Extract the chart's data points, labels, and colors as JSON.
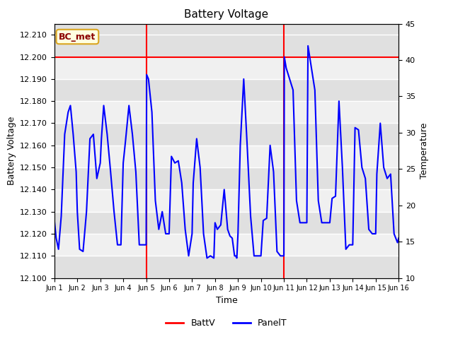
{
  "title": "Battery Voltage",
  "ylabel_left": "Battery Voltage",
  "ylabel_right": "Temperature",
  "xlabel": "Time",
  "ylim_left": [
    12.1,
    12.215
  ],
  "ylim_right": [
    10,
    45
  ],
  "yticks_left": [
    12.1,
    12.11,
    12.12,
    12.13,
    12.14,
    12.15,
    12.16,
    12.17,
    12.18,
    12.19,
    12.2,
    12.21
  ],
  "yticks_right": [
    10,
    15,
    20,
    25,
    30,
    35,
    40,
    45
  ],
  "xtick_labels": [
    "Jun 1",
    "Jun 2",
    "Jun 3",
    "Jun 4",
    "Jun 5",
    "Jun 6",
    "Jun 7",
    "Jun 8",
    "Jun 9",
    "Jun 10",
    "Jun 11",
    "Jun 12",
    "Jun 13",
    "Jun 14",
    "Jun 15",
    "Jun 16"
  ],
  "batt_v": 12.2,
  "vline_x": [
    4.0,
    10.0
  ],
  "annotation_text": "BC_met",
  "bg_bands": [
    [
      12.2,
      12.215,
      "#e0e0e0"
    ],
    [
      12.19,
      12.2,
      "#f0f0f0"
    ],
    [
      12.18,
      12.19,
      "#e0e0e0"
    ],
    [
      12.17,
      12.18,
      "#f0f0f0"
    ],
    [
      12.16,
      12.17,
      "#e0e0e0"
    ],
    [
      12.15,
      12.16,
      "#f0f0f0"
    ],
    [
      12.14,
      12.15,
      "#e0e0e0"
    ],
    [
      12.13,
      12.14,
      "#f0f0f0"
    ],
    [
      12.12,
      12.13,
      "#e0e0e0"
    ],
    [
      12.11,
      12.12,
      "#f0f0f0"
    ],
    [
      12.1,
      12.11,
      "#e0e0e0"
    ]
  ],
  "batt_color": "red",
  "panel_color": "blue",
  "panel_data_x": [
    0.0,
    0.08,
    0.18,
    0.3,
    0.45,
    0.6,
    0.7,
    0.82,
    0.95,
    1.0,
    1.1,
    1.25,
    1.4,
    1.55,
    1.7,
    1.85,
    2.0,
    2.05,
    2.15,
    2.3,
    2.45,
    2.6,
    2.75,
    2.9,
    3.0,
    3.1,
    3.25,
    3.4,
    3.55,
    3.7,
    3.85,
    4.0,
    4.02,
    4.1,
    4.25,
    4.4,
    4.55,
    4.7,
    4.85,
    5.0,
    5.1,
    5.25,
    5.4,
    5.55,
    5.7,
    5.85,
    6.0,
    6.05,
    6.2,
    6.35,
    6.5,
    6.65,
    6.8,
    6.95,
    7.0,
    7.1,
    7.25,
    7.4,
    7.55,
    7.65,
    7.75,
    7.85,
    7.9,
    7.95,
    8.0,
    8.1,
    8.25,
    8.4,
    8.55,
    8.7,
    8.85,
    9.0,
    9.1,
    9.25,
    9.4,
    9.55,
    9.7,
    9.85,
    10.0,
    10.02,
    10.1,
    10.25,
    10.4,
    10.55,
    10.7,
    10.85,
    11.0,
    11.05,
    11.2,
    11.35,
    11.5,
    11.65,
    11.8,
    11.95,
    12.0,
    12.1,
    12.25,
    12.4,
    12.55,
    12.7,
    12.85,
    13.0,
    13.1,
    13.25,
    13.4,
    13.55,
    13.7,
    13.85,
    14.0,
    14.05,
    14.2,
    14.35,
    14.5,
    14.65,
    14.8,
    14.95,
    15.0
  ],
  "panel_data_y": [
    12.126,
    12.118,
    12.113,
    12.128,
    12.165,
    12.175,
    12.178,
    12.165,
    12.148,
    12.13,
    12.113,
    12.112,
    12.13,
    12.163,
    12.165,
    12.145,
    12.152,
    12.163,
    12.178,
    12.165,
    12.148,
    12.13,
    12.115,
    12.115,
    12.152,
    12.162,
    12.178,
    12.165,
    12.148,
    12.115,
    12.115,
    12.115,
    12.192,
    12.19,
    12.175,
    12.135,
    12.122,
    12.13,
    12.12,
    12.12,
    12.155,
    12.152,
    12.153,
    12.143,
    12.122,
    12.11,
    12.12,
    12.143,
    12.163,
    12.15,
    12.12,
    12.109,
    12.11,
    12.109,
    12.125,
    12.122,
    12.124,
    12.14,
    12.122,
    12.119,
    12.118,
    12.11,
    12.11,
    12.109,
    12.12,
    12.16,
    12.19,
    12.16,
    12.128,
    12.11,
    12.11,
    12.11,
    12.126,
    12.127,
    12.16,
    12.148,
    12.112,
    12.11,
    12.11,
    12.2,
    12.195,
    12.19,
    12.185,
    12.135,
    12.125,
    12.125,
    12.125,
    12.205,
    12.195,
    12.185,
    12.135,
    12.125,
    12.125,
    12.125,
    12.125,
    12.136,
    12.137,
    12.18,
    12.15,
    12.113,
    12.115,
    12.115,
    12.168,
    12.167,
    12.15,
    12.145,
    12.122,
    12.12,
    12.12,
    12.147,
    12.17,
    12.15,
    12.145,
    12.147,
    12.12,
    12.116,
    12.118
  ]
}
